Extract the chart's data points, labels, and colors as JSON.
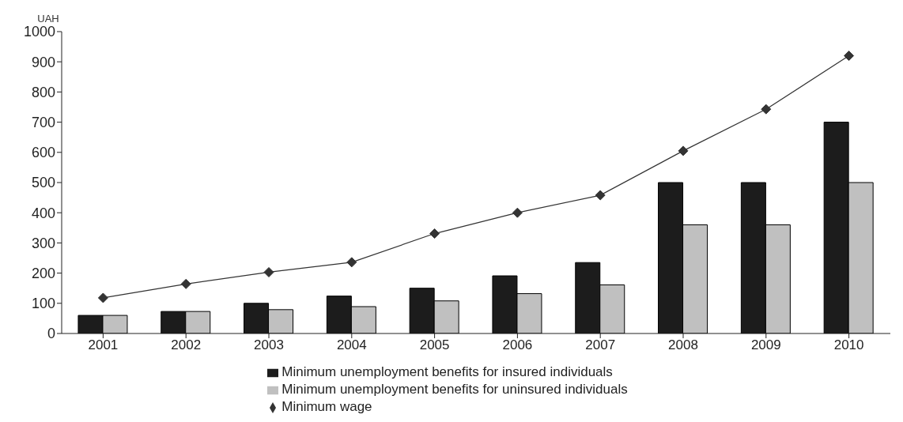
{
  "chart_data": {
    "type": "bar",
    "ylabel": "UAH",
    "categories": [
      "2001",
      "2002",
      "2003",
      "2004",
      "2005",
      "2006",
      "2007",
      "2008",
      "2009",
      "2010"
    ],
    "series": [
      {
        "name": "Minimum unemployment benefits for insured individuals",
        "color": "#1c1c1c",
        "values": [
          60,
          73,
          100,
          124,
          150,
          191,
          235,
          500,
          500,
          700
        ]
      },
      {
        "name": "Minimum unemployment benefits for uninsured individuals",
        "color": "#c0c0c0",
        "values": [
          60,
          73,
          79,
          89,
          108,
          132,
          161,
          360,
          360,
          500
        ]
      },
      {
        "name": "Minimum wage",
        "type": "line",
        "color": "#333333",
        "values": [
          118,
          164,
          203,
          236,
          331,
          400,
          458,
          605,
          743,
          920
        ]
      }
    ],
    "ylim": [
      0,
      1000
    ],
    "yticks": [
      0,
      100,
      200,
      300,
      400,
      500,
      600,
      700,
      800,
      900,
      1000
    ],
    "legend": "bottom",
    "marker": "diamond",
    "grid": false
  }
}
